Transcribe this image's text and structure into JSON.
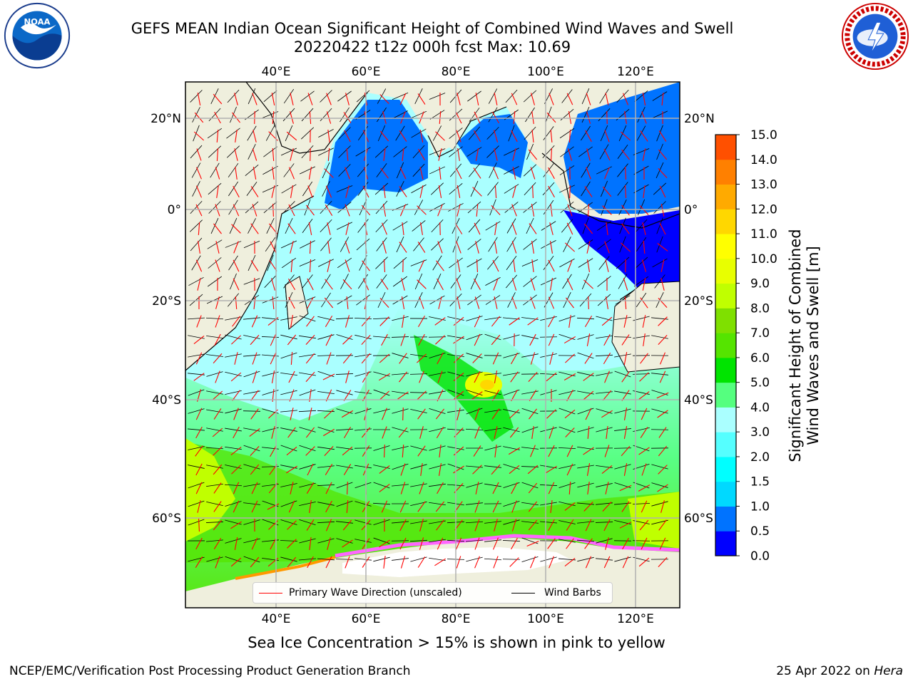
{
  "header": {
    "title_line1": "GEFS MEAN Indian Ocean Significant Height of Combined Wind Waves and Swell",
    "title_line2": "20220422 t12z 000h fcst   Max: 10.69"
  },
  "logos": {
    "left": "noaa-logo",
    "right": "nws-logo",
    "left_text": "NOAA",
    "right_text": "NATIONAL WEATHER SERVICE"
  },
  "map": {
    "lon_labels": [
      "40°E",
      "60°E",
      "80°E",
      "100°E",
      "120°E"
    ],
    "lat_labels": [
      "20°N",
      "0°",
      "20°S",
      "40°S",
      "60°S"
    ],
    "colors": {
      "land": "#efefdd",
      "ocean_low": "#0000ff",
      "ocean_mid": "#aaffff",
      "wave_dir": "#ff0000",
      "barbs": "#000000",
      "grid": "#b0b0b0"
    }
  },
  "legend": {
    "primary_label": "Primary Wave Direction (unscaled)",
    "barbs_label": "Wind Barbs"
  },
  "colorbar": {
    "label": "Significant Height of Combined Wind Waves and Swell [m]",
    "label_line1": "Significant Height of Combined",
    "label_line2": "Wind Waves and Swell [m]",
    "ticks": [
      "0.0",
      "0.5",
      "1.0",
      "1.5",
      "2.0",
      "3.0",
      "4.0",
      "5.0",
      "6.0",
      "7.0",
      "8.0",
      "9.0",
      "10.0",
      "11.0",
      "12.0",
      "13.0",
      "14.0",
      "15.0"
    ],
    "colors": [
      "#0000ff",
      "#0073ff",
      "#00d9ff",
      "#00ffff",
      "#55ffff",
      "#aaffff",
      "#55ff7f",
      "#00e400",
      "#55e400",
      "#7fe000",
      "#c0ff00",
      "#e8ff00",
      "#ffff00",
      "#ffd700",
      "#ffaa00",
      "#ff8000",
      "#ff5000",
      "#ff2000"
    ]
  },
  "footer": {
    "seaice_note": "Sea Ice Concentration > 15% is shown in pink to yellow",
    "left": "NCEP/EMC/Verification Post Processing Product Generation Branch",
    "right_date": "25 Apr 2022 on ",
    "right_host": "Hera"
  }
}
